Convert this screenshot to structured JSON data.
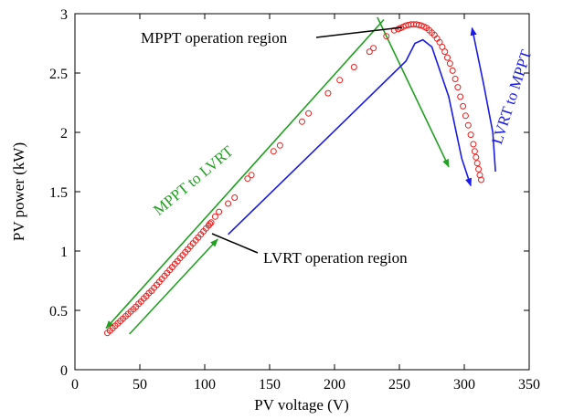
{
  "chart_data": {
    "type": "scatter",
    "xlabel": "PV voltage (V)",
    "ylabel": "PV power (kW)",
    "xlim": [
      0,
      350
    ],
    "ylim": [
      0,
      3
    ],
    "x_ticks": [
      0,
      50,
      100,
      150,
      200,
      250,
      300,
      350
    ],
    "y_ticks": [
      0,
      0.5,
      1,
      1.5,
      2,
      2.5,
      3
    ],
    "x_tick_labels": [
      "0",
      "50",
      "100",
      "150",
      "200",
      "250",
      "300",
      "350"
    ],
    "y_tick_labels": [
      "0",
      "0.5",
      "1",
      "1.5",
      "2",
      "2.5",
      "3"
    ],
    "grid": false,
    "series": [
      {
        "marker": "open-circle",
        "color": "#e8201e",
        "points": [
          [
            25,
            0.31
          ],
          [
            27,
            0.33
          ],
          [
            29,
            0.35
          ],
          [
            31,
            0.37
          ],
          [
            33,
            0.39
          ],
          [
            35,
            0.41
          ],
          [
            37,
            0.43
          ],
          [
            39,
            0.45
          ],
          [
            41,
            0.47
          ],
          [
            43,
            0.49
          ],
          [
            45,
            0.51
          ],
          [
            47,
            0.53
          ],
          [
            49,
            0.555
          ],
          [
            51,
            0.575
          ],
          [
            53,
            0.6
          ],
          [
            55,
            0.62
          ],
          [
            57,
            0.645
          ],
          [
            59,
            0.665
          ],
          [
            61,
            0.69
          ],
          [
            63,
            0.715
          ],
          [
            65,
            0.74
          ],
          [
            67,
            0.765
          ],
          [
            69,
            0.79
          ],
          [
            71,
            0.815
          ],
          [
            73,
            0.84
          ],
          [
            75,
            0.865
          ],
          [
            77,
            0.89
          ],
          [
            79,
            0.915
          ],
          [
            81,
            0.94
          ],
          [
            83,
            0.965
          ],
          [
            85,
            0.99
          ],
          [
            87,
            1.015
          ],
          [
            89,
            1.04
          ],
          [
            91,
            1.065
          ],
          [
            93,
            1.09
          ],
          [
            95,
            1.115
          ],
          [
            97,
            1.14
          ],
          [
            99,
            1.165
          ],
          [
            101,
            1.19
          ],
          [
            103,
            1.215
          ],
          [
            104,
            1.23
          ],
          [
            105,
            1.24
          ],
          [
            108,
            1.29
          ],
          [
            111,
            1.33
          ],
          [
            118,
            1.4
          ],
          [
            123,
            1.45
          ],
          [
            133,
            1.61
          ],
          [
            136,
            1.64
          ],
          [
            153,
            1.84
          ],
          [
            158,
            1.89
          ],
          [
            175,
            2.09
          ],
          [
            180,
            2.16
          ],
          [
            195,
            2.33
          ],
          [
            204,
            2.44
          ],
          [
            215,
            2.55
          ],
          [
            227,
            2.68
          ],
          [
            230,
            2.71
          ],
          [
            240,
            2.81
          ],
          [
            246,
            2.86
          ],
          [
            249,
            2.87
          ],
          [
            251,
            2.88
          ],
          [
            253,
            2.89
          ],
          [
            255,
            2.9
          ],
          [
            257,
            2.905
          ],
          [
            259,
            2.91
          ],
          [
            261,
            2.91
          ],
          [
            263,
            2.91
          ],
          [
            265,
            2.905
          ],
          [
            267,
            2.9
          ],
          [
            269,
            2.89
          ],
          [
            271,
            2.88
          ],
          [
            273,
            2.86
          ],
          [
            275,
            2.84
          ],
          [
            277,
            2.82
          ],
          [
            279,
            2.79
          ],
          [
            281,
            2.76
          ],
          [
            283,
            2.72
          ],
          [
            285,
            2.68
          ],
          [
            287,
            2.63
          ],
          [
            289,
            2.58
          ],
          [
            291,
            2.52
          ],
          [
            293,
            2.45
          ],
          [
            295,
            2.38
          ],
          [
            297,
            2.3
          ],
          [
            299,
            2.22
          ],
          [
            301,
            2.14
          ],
          [
            303,
            2.06
          ],
          [
            305,
            1.98
          ],
          [
            307,
            1.9
          ],
          [
            308,
            1.84
          ],
          [
            309,
            1.79
          ],
          [
            310,
            1.74
          ],
          [
            311,
            1.69
          ],
          [
            312,
            1.64
          ],
          [
            313,
            1.6
          ]
        ]
      }
    ],
    "annotations": [
      {
        "text": "MPPT operation region"
      },
      {
        "text": "LVRT operation region"
      },
      {
        "text": "MPPT to LVRT",
        "color": "#22a022"
      },
      {
        "text": "LVRT to MPPT",
        "color": "#1a1ae8"
      }
    ],
    "guide_lines": {
      "green_outer": [
        [
          238,
          2.95
        ],
        [
          24,
          0.35
        ]
      ],
      "green_inner": [
        [
          42,
          0.3
        ],
        [
          110,
          1.1
        ]
      ],
      "green_right": [
        [
          233,
          2.97
        ],
        [
          288,
          1.71
        ]
      ],
      "blue_main": [
        [
          118,
          1.14
        ],
        [
          210,
          2.12
        ],
        [
          255,
          2.6
        ],
        [
          262,
          2.75
        ],
        [
          268,
          2.78
        ],
        [
          275,
          2.72
        ],
        [
          288,
          2.3
        ],
        [
          298,
          1.78
        ],
        [
          305,
          1.55
        ]
      ],
      "blue_right": [
        [
          324,
          1.67
        ],
        [
          322,
          2.0
        ],
        [
          315,
          2.4
        ],
        [
          306,
          2.88
        ]
      ]
    },
    "colors": {
      "markers": "#e8201e",
      "green": "#22a022",
      "blue": "#1a1ae8",
      "axis": "#000000"
    }
  }
}
